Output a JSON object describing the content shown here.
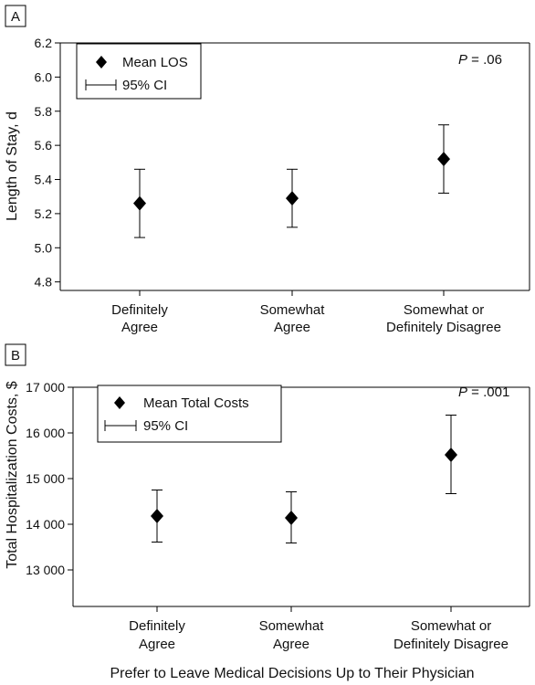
{
  "figure": {
    "shared_xlabel": "Prefer to Leave Medical Decisions Up to Their Physician"
  },
  "chart_data": [
    {
      "type": "scatter",
      "panel_label": "A",
      "categories": [
        "Definitely Agree",
        "Somewhat Agree",
        "Somewhat or Definitely Disagree"
      ],
      "category_lines": [
        [
          "Definitely",
          "Agree"
        ],
        [
          "Somewhat",
          "Agree"
        ],
        [
          "Somewhat or",
          "Definitely Disagree"
        ]
      ],
      "series": [
        {
          "name": "Mean LOS",
          "values": [
            5.26,
            5.29,
            5.52
          ],
          "ci_lower": [
            5.06,
            5.12,
            5.32
          ],
          "ci_upper": [
            5.46,
            5.46,
            5.72
          ]
        }
      ],
      "ylabel": "Length of Stay, d",
      "ylim": [
        4.75,
        6.2
      ],
      "yticks": [
        4.8,
        5.0,
        5.2,
        5.4,
        5.6,
        5.8,
        6.0,
        6.2
      ],
      "ytick_labels": [
        "4.8",
        "5.0",
        "5.2",
        "5.4",
        "5.6",
        "5.8",
        "6.0",
        "6.2"
      ],
      "legend": {
        "marker_label": "Mean LOS",
        "ci_label": "95% CI",
        "placement": "top-left"
      },
      "annotation": {
        "italic": "P",
        "rest": " = .06"
      },
      "grid": false
    },
    {
      "type": "scatter",
      "panel_label": "B",
      "categories": [
        "Definitely Agree",
        "Somewhat Agree",
        "Somewhat or Definitely Disagree"
      ],
      "category_lines": [
        [
          "Definitely",
          "Agree"
        ],
        [
          "Somewhat",
          "Agree"
        ],
        [
          "Somewhat or",
          "Definitely Disagree"
        ]
      ],
      "series": [
        {
          "name": "Mean Total Costs",
          "values": [
            14180,
            14140,
            15520
          ],
          "ci_lower": [
            13610,
            13590,
            14670
          ],
          "ci_upper": [
            14750,
            14710,
            16390
          ]
        }
      ],
      "ylabel": "Total Hospitalization Costs, $",
      "ylim": [
        12200,
        17000
      ],
      "yticks": [
        13000,
        14000,
        15000,
        16000,
        17000
      ],
      "ytick_labels": [
        "13 000",
        "14 000",
        "15 000",
        "16 000",
        "17 000"
      ],
      "legend": {
        "marker_label": "Mean Total Costs",
        "ci_label": "95% CI",
        "placement": "top-left"
      },
      "annotation": {
        "italic": "P",
        "rest": " = .001"
      },
      "grid": false
    }
  ]
}
